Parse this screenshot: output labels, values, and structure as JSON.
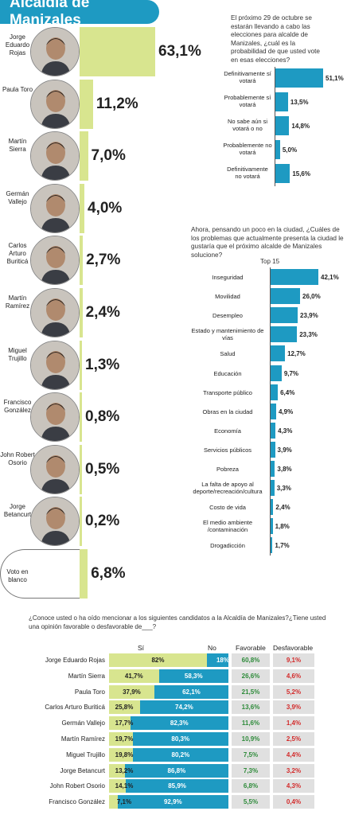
{
  "title": "Alcaldía de Manizales",
  "colors": {
    "blue": "#1e9ac2",
    "green": "#d8e58f",
    "green_dark_text": "#2e8b3a",
    "red_text": "#d32a2a",
    "grey_box": "#e0e0e0"
  },
  "candidates": [
    {
      "name": "Jorge Eduardo Rojas",
      "pct": "63,1%",
      "value": 63.1
    },
    {
      "name": "Paula Toro",
      "pct": "11,2%",
      "value": 11.2
    },
    {
      "name": "Martín Sierra",
      "pct": "7,0%",
      "value": 7.0
    },
    {
      "name": "Germán Vallejo",
      "pct": "4,0%",
      "value": 4.0
    },
    {
      "name": "Carlos Arturo Buriticá",
      "pct": "2,7%",
      "value": 2.7
    },
    {
      "name": "Martín Ramírez",
      "pct": "2,4%",
      "value": 2.4
    },
    {
      "name": "Miguel Trujillo",
      "pct": "1,3%",
      "value": 1.3
    },
    {
      "name": "Francisco González",
      "pct": "0,8%",
      "value": 0.8
    },
    {
      "name": "John Robert Osorio",
      "pct": "0,5%",
      "value": 0.5
    },
    {
      "name": "Jorge Betancurt",
      "pct": "0,2%",
      "value": 0.2
    },
    {
      "name": "Voto en blanco",
      "pct": "6,8%",
      "value": 6.8
    }
  ],
  "vote_question": "El próximo 29 de octubre se estarán llevando a cabo las elecciones para alcalde de Manizales, ¿cuál es la probabilidad de que usted vote en esas elecciones?",
  "vote_chart": [
    {
      "label": "Definitivamente sí votará",
      "value": 51.1,
      "text": "51,1%"
    },
    {
      "label": "Probablemente sí votará",
      "value": 13.5,
      "text": "13,5%"
    },
    {
      "label": "No sabe aún si votará o no",
      "value": 14.8,
      "text": "14,8%"
    },
    {
      "label": "Probablemente no votará",
      "value": 5.0,
      "text": "5,0%"
    },
    {
      "label": "Definitivamente no votará",
      "value": 15.6,
      "text": "15,6%"
    }
  ],
  "problems_question": "Ahora, pensando un poco en la ciudad, ¿Cuáles de los problemas que actualmente presenta la ciudad le gustaría que el próximo alcalde de Manizales solucione?",
  "problems_subtitle": "Top 15",
  "problems_chart": [
    {
      "label": "Inseguridad",
      "value": 42.1,
      "text": "42,1%"
    },
    {
      "label": "Movilidad",
      "value": 26.0,
      "text": "26,0%"
    },
    {
      "label": "Desempleo",
      "value": 23.9,
      "text": "23,9%"
    },
    {
      "label": "Estado y mantenimiento de vías",
      "value": 23.3,
      "text": "23,3%"
    },
    {
      "label": "Salud",
      "value": 12.7,
      "text": "12,7%"
    },
    {
      "label": "Educación",
      "value": 9.7,
      "text": "9,7%"
    },
    {
      "label": "Transporte público",
      "value": 6.4,
      "text": "6,4%"
    },
    {
      "label": "Obras en la ciudad",
      "value": 4.9,
      "text": "4,9%"
    },
    {
      "label": "Economía",
      "value": 4.3,
      "text": "4,3%"
    },
    {
      "label": "Servicios públicos",
      "value": 3.9,
      "text": "3,9%"
    },
    {
      "label": "Pobreza",
      "value": 3.8,
      "text": "3,8%"
    },
    {
      "label": "La falta de apoyo al deporte/recreación/cultura",
      "value": 3.3,
      "text": "3,3%"
    },
    {
      "label": "Costo de vida",
      "value": 2.4,
      "text": "2,4%"
    },
    {
      "label": "El medio ambiente /contaminación",
      "value": 1.8,
      "text": "1,8%"
    },
    {
      "label": "Drogadicción",
      "value": 1.7,
      "text": "1,7%"
    }
  ],
  "table_question": "¿Conoce usted o ha oído mencionar a los siguientes candidatos a la Alcaldía de Manizales?¿Tiene usted una opinión favorable o desfavorable de___?",
  "table_headers": {
    "si": "Sí",
    "no": "No",
    "favorable": "Favorable",
    "desfavorable": "Desfavorable"
  },
  "table_rows": [
    {
      "name": "Jorge Eduardo Rojas",
      "si": 82,
      "si_text": "82%",
      "no_text": "18%",
      "fav": "60,8%",
      "desfav": "9,1%"
    },
    {
      "name": "Martín Sierra",
      "si": 41.7,
      "si_text": "41,7%",
      "no_text": "58,3%",
      "fav": "26,6%",
      "desfav": "4,6%"
    },
    {
      "name": "Paula Toro",
      "si": 37.9,
      "si_text": "37,9%",
      "no_text": "62,1%",
      "fav": "21,5%",
      "desfav": "5,2%"
    },
    {
      "name": "Carlos Arturo Buriticá",
      "si": 25.8,
      "si_text": "25,8%",
      "no_text": "74,2%",
      "fav": "13,6%",
      "desfav": "3,9%"
    },
    {
      "name": "Germán Vallejo",
      "si": 17.7,
      "si_text": "17,7%",
      "no_text": "82,3%",
      "fav": "11,6%",
      "desfav": "1,4%"
    },
    {
      "name": "Martín Ramírez",
      "si": 19.7,
      "si_text": "19,7%",
      "no_text": "80,3%",
      "fav": "10,9%",
      "desfav": "2,5%"
    },
    {
      "name": "Miguel Trujillo",
      "si": 19.8,
      "si_text": "19,8%",
      "no_text": "80,2%",
      "fav": "7,5%",
      "desfav": "4,4%"
    },
    {
      "name": "Jorge Betancurt",
      "si": 13.2,
      "si_text": "13,2%",
      "no_text": "86,8%",
      "fav": "7,3%",
      "desfav": "3,2%"
    },
    {
      "name": "John Robert Osorio",
      "si": 14.1,
      "si_text": "14,1%",
      "no_text": "85,9%",
      "fav": "6,8%",
      "desfav": "4,3%"
    },
    {
      "name": "Francisco González",
      "si": 7.1,
      "si_text": "7,1%",
      "no_text": "92,9%",
      "fav": "5,5%",
      "desfav": "0,4%"
    }
  ],
  "chart_data": [
    {
      "type": "bar",
      "categories": [
        "Jorge Eduardo Rojas",
        "Paula Toro",
        "Martín Sierra",
        "Germán Vallejo",
        "Carlos Arturo Buriticá",
        "Martín Ramírez",
        "Miguel Trujillo",
        "Francisco González",
        "John Robert Osorio",
        "Jorge Betancurt",
        "Voto en blanco"
      ],
      "values": [
        63.1,
        11.2,
        7.0,
        4.0,
        2.7,
        2.4,
        1.3,
        0.8,
        0.5,
        0.2,
        6.8
      ],
      "title": "Alcaldía de Manizales"
    },
    {
      "type": "bar",
      "categories": [
        "Definitivamente sí votará",
        "Probablemente sí votará",
        "No sabe aún si votará o no",
        "Probablemente no votará",
        "Definitivamente no votará"
      ],
      "values": [
        51.1,
        13.5,
        14.8,
        5.0,
        15.6
      ],
      "title": "El próximo 29 de octubre se estarán llevando a cabo las elecciones para alcalde de Manizales, ¿cuál es la probabilidad de que usted vote en esas elecciones?"
    },
    {
      "type": "bar",
      "categories": [
        "Inseguridad",
        "Movilidad",
        "Desempleo",
        "Estado y mantenimiento de vías",
        "Salud",
        "Educación",
        "Transporte público",
        "Obras en la ciudad",
        "Economía",
        "Servicios públicos",
        "Pobreza",
        "La falta de apoyo al deporte/recreación/cultura",
        "Costo de vida",
        "El medio ambiente /contaminación",
        "Drogadicción"
      ],
      "values": [
        42.1,
        26.0,
        23.9,
        23.3,
        12.7,
        9.7,
        6.4,
        4.9,
        4.3,
        3.9,
        3.8,
        3.3,
        2.4,
        1.8,
        1.7
      ],
      "title": "Ahora, pensando un poco en la ciudad, ¿Cuáles de los problemas que actualmente presenta la ciudad le gustaría que el próximo alcalde de Manizales solucione?",
      "subtitle": "Top 15"
    },
    {
      "type": "table",
      "title": "¿Conoce usted o ha oído mencionar a los siguientes candidatos a la Alcaldía de Manizales?¿Tiene usted una opinión favorable o desfavorable de___?",
      "columns": [
        "Sí",
        "No",
        "Favorable",
        "Desfavorable"
      ],
      "rows": [
        "Jorge Eduardo Rojas",
        "Martín Sierra",
        "Paula Toro",
        "Carlos Arturo Buriticá",
        "Germán Vallejo",
        "Martín Ramírez",
        "Miguel Trujillo",
        "Jorge Betancurt",
        "John Robert Osorio",
        "Francisco González"
      ],
      "series": [
        {
          "name": "Sí",
          "values": [
            82,
            41.7,
            37.9,
            25.8,
            17.7,
            19.7,
            19.8,
            13.2,
            14.1,
            7.1
          ]
        },
        {
          "name": "No",
          "values": [
            18,
            58.3,
            62.1,
            74.2,
            82.3,
            80.3,
            80.2,
            86.8,
            85.9,
            92.9
          ]
        },
        {
          "name": "Favorable",
          "values": [
            60.8,
            26.6,
            21.5,
            13.6,
            11.6,
            10.9,
            7.5,
            7.3,
            6.8,
            5.5
          ]
        },
        {
          "name": "Desfavorable",
          "values": [
            9.1,
            4.6,
            5.2,
            3.9,
            1.4,
            2.5,
            4.4,
            3.2,
            4.3,
            0.4
          ]
        }
      ]
    }
  ]
}
